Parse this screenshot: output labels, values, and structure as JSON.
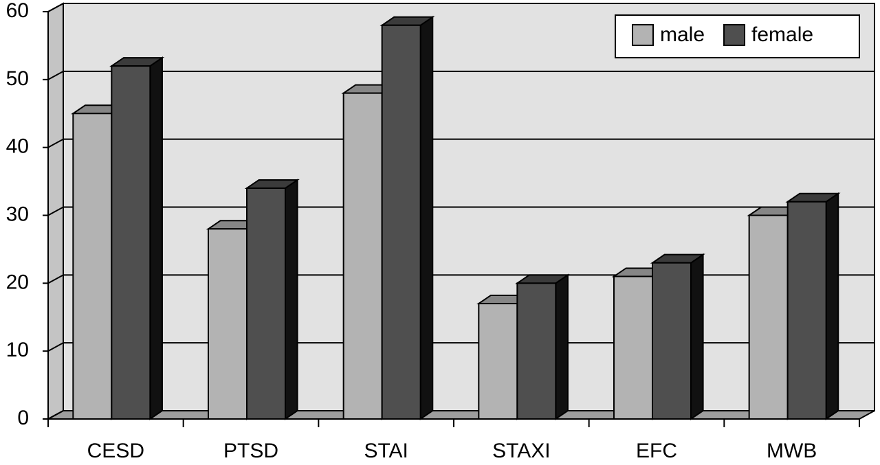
{
  "chart_data": {
    "type": "bar3d",
    "categories": [
      "CESD",
      "PTSD",
      "STAI",
      "STAXI",
      "EFC",
      "MWB"
    ],
    "series": [
      {
        "name": "male",
        "color": "#b3b3b3",
        "values": [
          45,
          28,
          48,
          17,
          21,
          30
        ]
      },
      {
        "name": "female",
        "color": "#4f4f4f",
        "values": [
          52,
          34,
          58,
          20,
          23,
          32
        ]
      }
    ],
    "ylim": [
      0,
      60
    ],
    "yticks": [
      0,
      10,
      20,
      30,
      40,
      50,
      60
    ],
    "grid": true,
    "legend": "top-right"
  }
}
